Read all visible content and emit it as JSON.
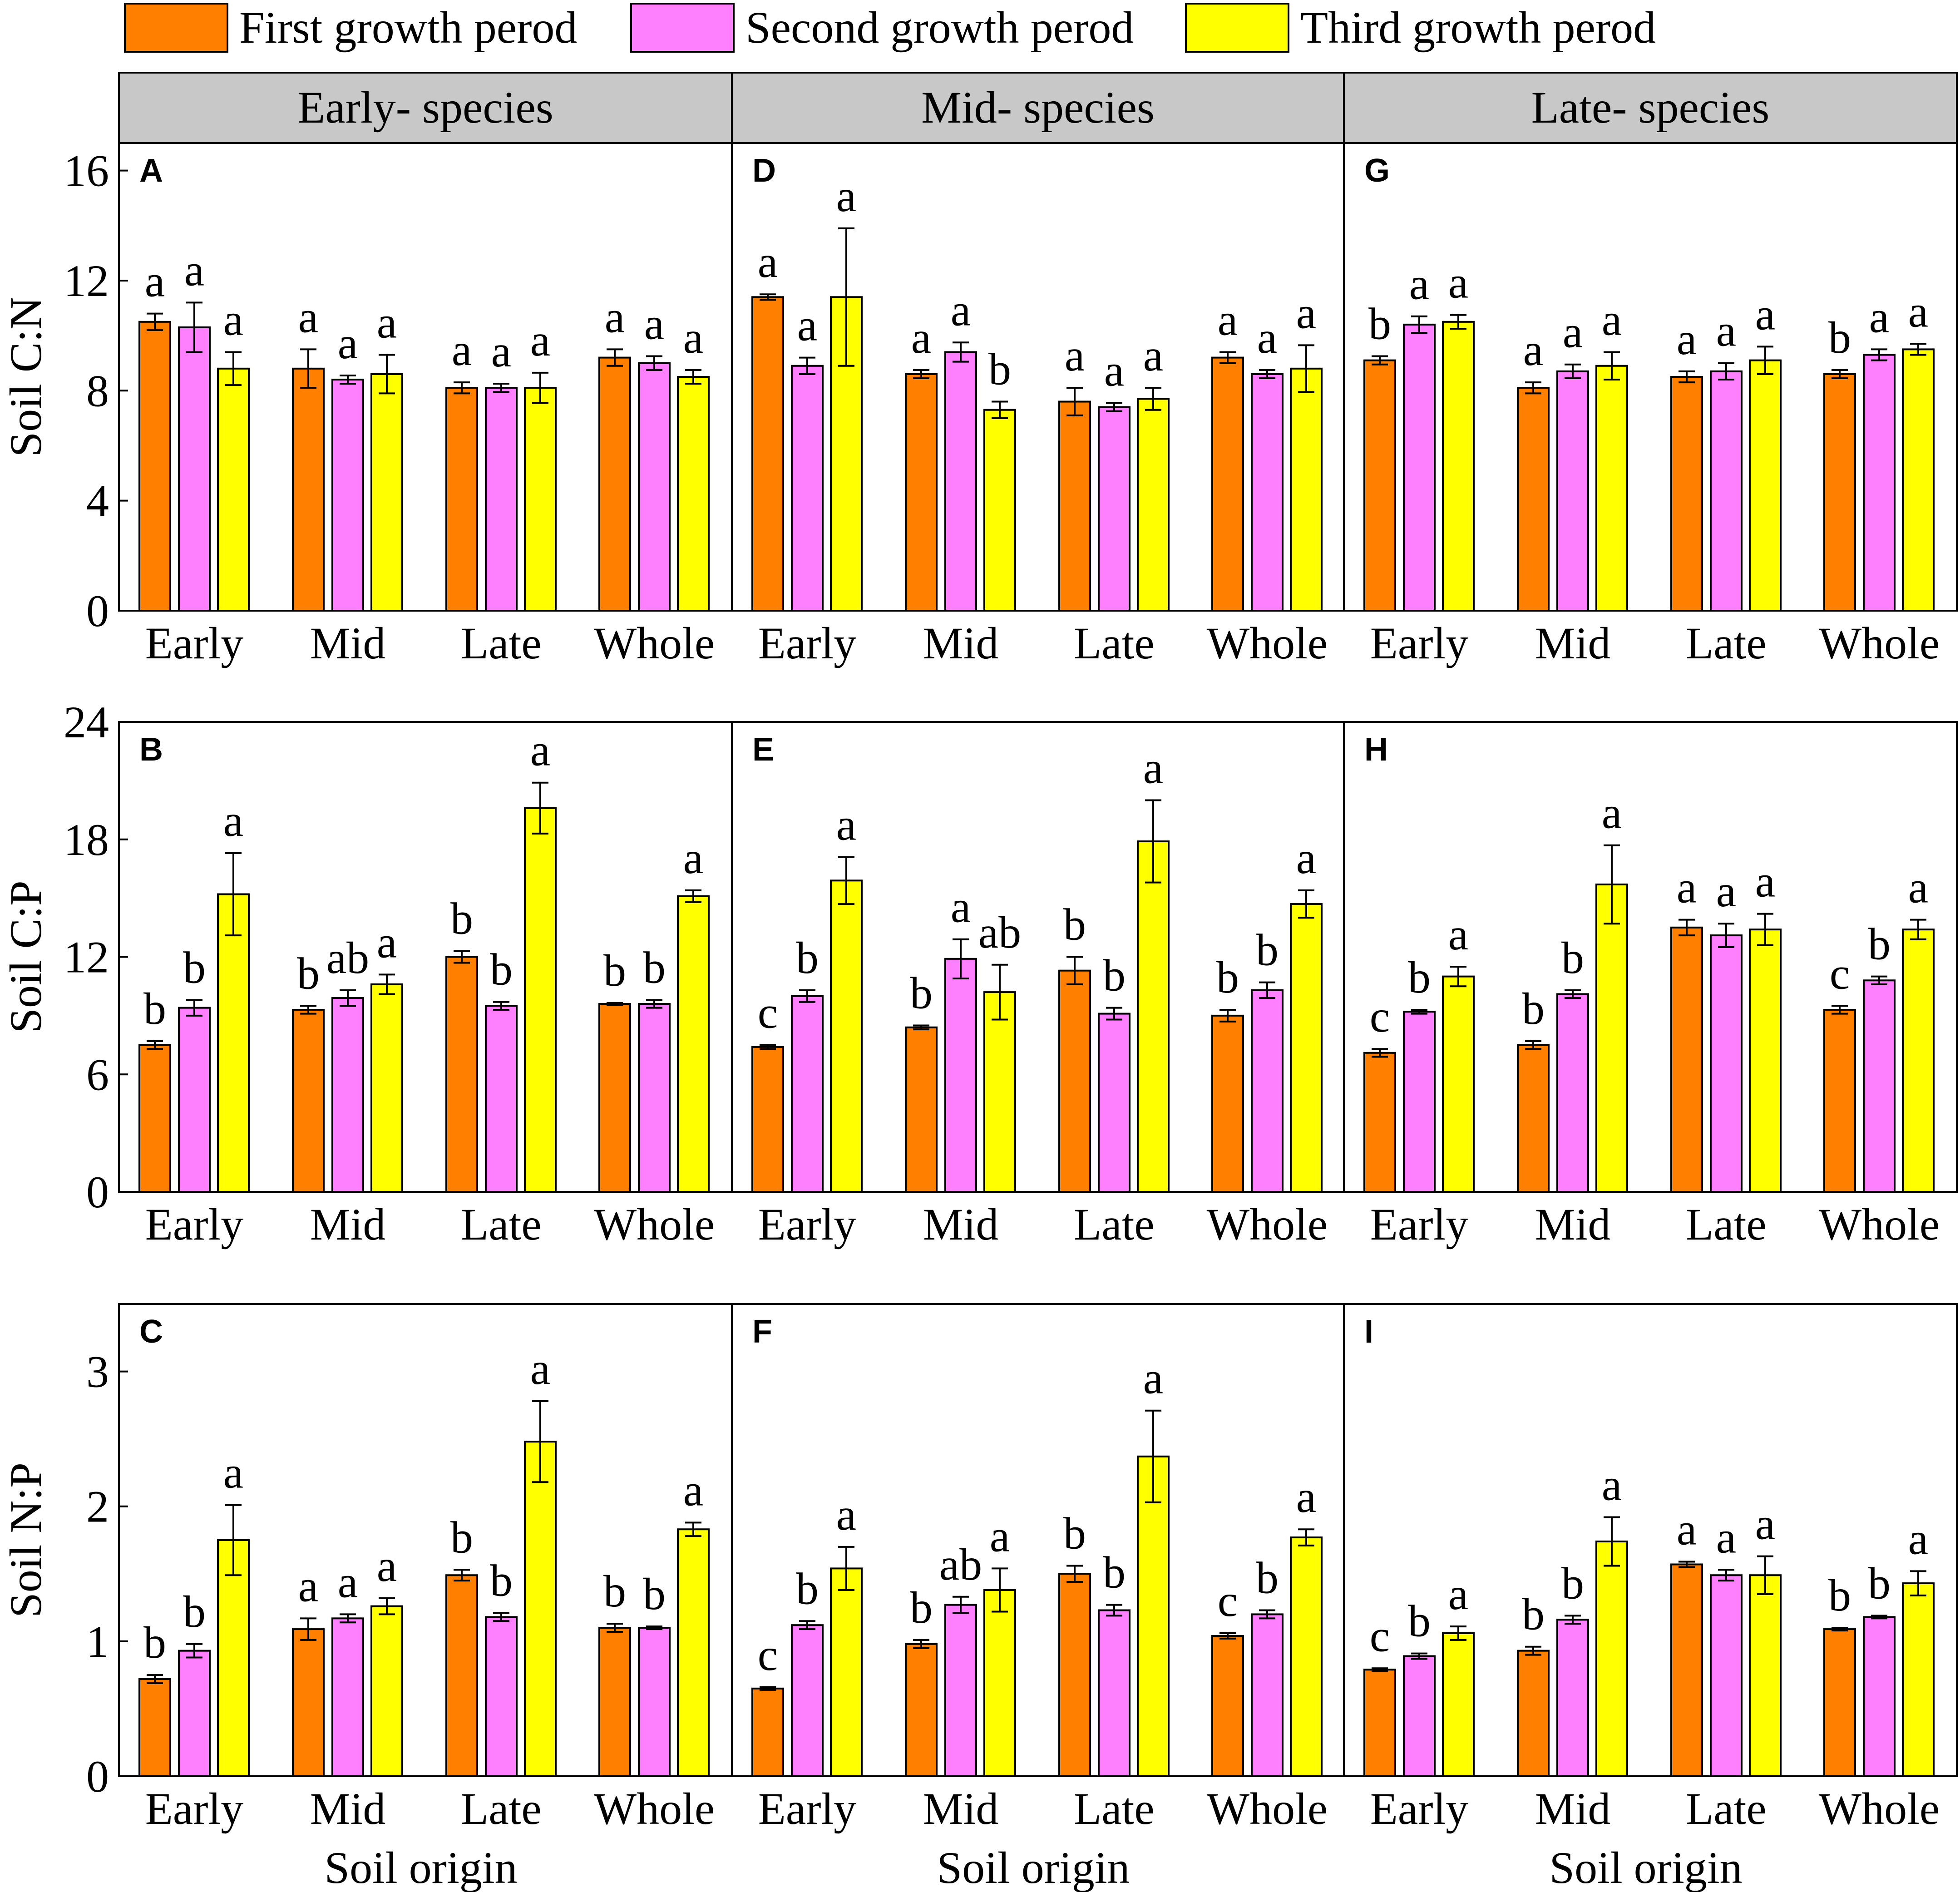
{
  "legend": [
    {
      "label": "First growth perod",
      "color": "#FF7F00"
    },
    {
      "label": "Second growth perod",
      "color": "#FF80FF"
    },
    {
      "label": "Third growth perod",
      "color": "#FFFF00"
    }
  ],
  "column_headers": [
    "Early- species",
    "Mid- species",
    "Late- species"
  ],
  "x_label": "Soil origin",
  "chart_data": [
    {
      "panel": "A",
      "type": "bar",
      "species": "Early- species",
      "ylabel": "Soil C:N",
      "ylim": [
        0,
        17
      ],
      "yticks": [
        0,
        4,
        8,
        12,
        16
      ],
      "categories": [
        "Early",
        "Mid",
        "Late",
        "Whole"
      ],
      "series": [
        {
          "name": "First growth perod",
          "values": [
            10.5,
            8.8,
            8.1,
            9.2
          ],
          "errors": [
            0.3,
            0.7,
            0.2,
            0.3
          ],
          "letters": [
            "a",
            "a",
            "a",
            "a"
          ]
        },
        {
          "name": "Second growth perod",
          "values": [
            10.3,
            8.4,
            8.1,
            9.0
          ],
          "errors": [
            0.9,
            0.15,
            0.15,
            0.25
          ],
          "letters": [
            "a",
            "a",
            "a",
            "a"
          ]
        },
        {
          "name": "Third growth perod",
          "values": [
            8.8,
            8.6,
            8.1,
            8.5
          ],
          "errors": [
            0.6,
            0.7,
            0.55,
            0.25
          ],
          "letters": [
            "a",
            "a",
            "a",
            "a"
          ]
        }
      ]
    },
    {
      "panel": "B",
      "type": "bar",
      "species": "Early- species",
      "ylabel": "Soil C:P",
      "ylim": [
        0,
        24
      ],
      "yticks": [
        0,
        6,
        12,
        18,
        24
      ],
      "categories": [
        "Early",
        "Mid",
        "Late",
        "Whole"
      ],
      "series": [
        {
          "name": "First growth perod",
          "values": [
            7.5,
            9.3,
            12.0,
            9.6
          ],
          "errors": [
            0.2,
            0.2,
            0.3,
            0.05
          ],
          "letters": [
            "b",
            "b",
            "b",
            "b"
          ]
        },
        {
          "name": "Second growth perod",
          "values": [
            9.4,
            9.9,
            9.5,
            9.6
          ],
          "errors": [
            0.4,
            0.4,
            0.2,
            0.2
          ],
          "letters": [
            "b",
            "ab",
            "b",
            "b"
          ]
        },
        {
          "name": "Third growth perod",
          "values": [
            15.2,
            10.6,
            19.6,
            15.1
          ],
          "errors": [
            2.1,
            0.5,
            1.3,
            0.3
          ],
          "letters": [
            "a",
            "a",
            "a",
            "a"
          ]
        }
      ]
    },
    {
      "panel": "C",
      "type": "bar",
      "species": "Early- species",
      "ylabel": "Soil N:P",
      "ylim": [
        0,
        3.5
      ],
      "yticks": [
        0,
        1,
        2,
        3
      ],
      "categories": [
        "Early",
        "Mid",
        "Late",
        "Whole"
      ],
      "series": [
        {
          "name": "First growth perod",
          "values": [
            0.72,
            1.09,
            1.49,
            1.1
          ],
          "errors": [
            0.03,
            0.08,
            0.04,
            0.03
          ],
          "letters": [
            "b",
            "a",
            "b",
            "b"
          ]
        },
        {
          "name": "Second growth perod",
          "values": [
            0.93,
            1.17,
            1.18,
            1.1
          ],
          "errors": [
            0.05,
            0.03,
            0.03,
            0.01
          ],
          "letters": [
            "b",
            "a",
            "b",
            "b"
          ]
        },
        {
          "name": "Third growth perod",
          "values": [
            1.75,
            1.26,
            2.48,
            1.83
          ],
          "errors": [
            0.26,
            0.06,
            0.3,
            0.05
          ],
          "letters": [
            "a",
            "a",
            "a",
            "a"
          ]
        }
      ]
    },
    {
      "panel": "D",
      "type": "bar",
      "species": "Mid- species",
      "ylabel": "Soil C:N",
      "ylim": [
        0,
        17
      ],
      "yticks": [
        0,
        4,
        8,
        12,
        16
      ],
      "categories": [
        "Early",
        "Mid",
        "Late",
        "Whole"
      ],
      "series": [
        {
          "name": "First growth perod",
          "values": [
            11.4,
            8.6,
            7.6,
            9.2
          ],
          "errors": [
            0.1,
            0.15,
            0.5,
            0.2
          ],
          "letters": [
            "a",
            "a",
            "a",
            "a"
          ]
        },
        {
          "name": "Second growth perod",
          "values": [
            8.9,
            9.4,
            7.4,
            8.6
          ],
          "errors": [
            0.3,
            0.35,
            0.15,
            0.15
          ],
          "letters": [
            "a",
            "a",
            "a",
            "a"
          ]
        },
        {
          "name": "Third growth perod",
          "values": [
            11.4,
            7.3,
            7.7,
            8.8
          ],
          "errors": [
            2.5,
            0.3,
            0.4,
            0.85
          ],
          "letters": [
            "a",
            "b",
            "a",
            "a"
          ]
        }
      ]
    },
    {
      "panel": "E",
      "type": "bar",
      "species": "Mid- species",
      "ylabel": "Soil C:P",
      "ylim": [
        0,
        24
      ],
      "yticks": [
        0,
        6,
        12,
        18,
        24
      ],
      "categories": [
        "Early",
        "Mid",
        "Late",
        "Whole"
      ],
      "series": [
        {
          "name": "First growth perod",
          "values": [
            7.4,
            8.4,
            11.3,
            9.0
          ],
          "errors": [
            0.1,
            0.1,
            0.7,
            0.3
          ],
          "letters": [
            "c",
            "b",
            "b",
            "b"
          ]
        },
        {
          "name": "Second growth perod",
          "values": [
            10.0,
            11.9,
            9.1,
            10.3
          ],
          "errors": [
            0.3,
            1.0,
            0.3,
            0.4
          ],
          "letters": [
            "b",
            "a",
            "b",
            "b"
          ]
        },
        {
          "name": "Third growth perod",
          "values": [
            15.9,
            10.2,
            17.9,
            14.7
          ],
          "errors": [
            1.2,
            1.4,
            2.1,
            0.7
          ],
          "letters": [
            "a",
            "ab",
            "a",
            "a"
          ]
        }
      ]
    },
    {
      "panel": "F",
      "type": "bar",
      "species": "Mid- species",
      "ylabel": "Soil N:P",
      "ylim": [
        0,
        3.5
      ],
      "yticks": [
        0,
        1,
        2,
        3
      ],
      "categories": [
        "Early",
        "Mid",
        "Late",
        "Whole"
      ],
      "series": [
        {
          "name": "First growth perod",
          "values": [
            0.65,
            0.98,
            1.5,
            1.04
          ],
          "errors": [
            0.01,
            0.03,
            0.06,
            0.02
          ],
          "letters": [
            "c",
            "b",
            "b",
            "c"
          ]
        },
        {
          "name": "Second growth perod",
          "values": [
            1.12,
            1.27,
            1.23,
            1.2
          ],
          "errors": [
            0.03,
            0.06,
            0.04,
            0.03
          ],
          "letters": [
            "b",
            "ab",
            "b",
            "b"
          ]
        },
        {
          "name": "Third growth perod",
          "values": [
            1.54,
            1.38,
            2.37,
            1.77
          ],
          "errors": [
            0.16,
            0.16,
            0.34,
            0.06
          ],
          "letters": [
            "a",
            "a",
            "a",
            "a"
          ]
        }
      ]
    },
    {
      "panel": "G",
      "type": "bar",
      "species": "Late- species",
      "ylabel": "Soil C:N",
      "ylim": [
        0,
        17
      ],
      "yticks": [
        0,
        4,
        8,
        12,
        16
      ],
      "categories": [
        "Early",
        "Mid",
        "Late",
        "Whole"
      ],
      "series": [
        {
          "name": "First growth perod",
          "values": [
            9.1,
            8.1,
            8.5,
            8.6
          ],
          "errors": [
            0.15,
            0.2,
            0.2,
            0.15
          ],
          "letters": [
            "b",
            "a",
            "a",
            "b"
          ]
        },
        {
          "name": "Second growth perod",
          "values": [
            10.4,
            8.7,
            8.7,
            9.3
          ],
          "errors": [
            0.3,
            0.25,
            0.3,
            0.2
          ],
          "letters": [
            "a",
            "a",
            "a",
            "a"
          ]
        },
        {
          "name": "Third growth perod",
          "values": [
            10.5,
            8.9,
            9.1,
            9.5
          ],
          "errors": [
            0.25,
            0.5,
            0.5,
            0.2
          ],
          "letters": [
            "a",
            "a",
            "a",
            "a"
          ]
        }
      ]
    },
    {
      "panel": "H",
      "type": "bar",
      "species": "Late- species",
      "ylabel": "Soil C:P",
      "ylim": [
        0,
        24
      ],
      "yticks": [
        0,
        6,
        12,
        18,
        24
      ],
      "categories": [
        "Early",
        "Mid",
        "Late",
        "Whole"
      ],
      "series": [
        {
          "name": "First growth perod",
          "values": [
            7.1,
            7.5,
            13.5,
            9.3
          ],
          "errors": [
            0.2,
            0.2,
            0.4,
            0.2
          ],
          "letters": [
            "c",
            "b",
            "a",
            "c"
          ]
        },
        {
          "name": "Second growth perod",
          "values": [
            9.2,
            10.1,
            13.1,
            10.8
          ],
          "errors": [
            0.1,
            0.2,
            0.6,
            0.2
          ],
          "letters": [
            "b",
            "b",
            "a",
            "b"
          ]
        },
        {
          "name": "Third growth perod",
          "values": [
            11.0,
            15.7,
            13.4,
            13.4
          ],
          "errors": [
            0.5,
            2.0,
            0.8,
            0.5
          ],
          "letters": [
            "a",
            "a",
            "a",
            "a"
          ]
        }
      ]
    },
    {
      "panel": "I",
      "type": "bar",
      "species": "Late- species",
      "ylabel": "Soil N:P",
      "ylim": [
        0,
        3.5
      ],
      "yticks": [
        0,
        1,
        2,
        3
      ],
      "categories": [
        "Early",
        "Mid",
        "Late",
        "Whole"
      ],
      "series": [
        {
          "name": "First growth perod",
          "values": [
            0.79,
            0.93,
            1.57,
            1.09
          ],
          "errors": [
            0.01,
            0.03,
            0.02,
            0.01
          ],
          "letters": [
            "c",
            "b",
            "a",
            "b"
          ]
        },
        {
          "name": "Second growth perod",
          "values": [
            0.89,
            1.16,
            1.49,
            1.18
          ],
          "errors": [
            0.02,
            0.03,
            0.04,
            0.01
          ],
          "letters": [
            "b",
            "b",
            "a",
            "b"
          ]
        },
        {
          "name": "Third growth perod",
          "values": [
            1.06,
            1.74,
            1.49,
            1.43
          ],
          "errors": [
            0.05,
            0.18,
            0.14,
            0.09
          ],
          "letters": [
            "a",
            "a",
            "a",
            "a"
          ]
        }
      ]
    }
  ]
}
